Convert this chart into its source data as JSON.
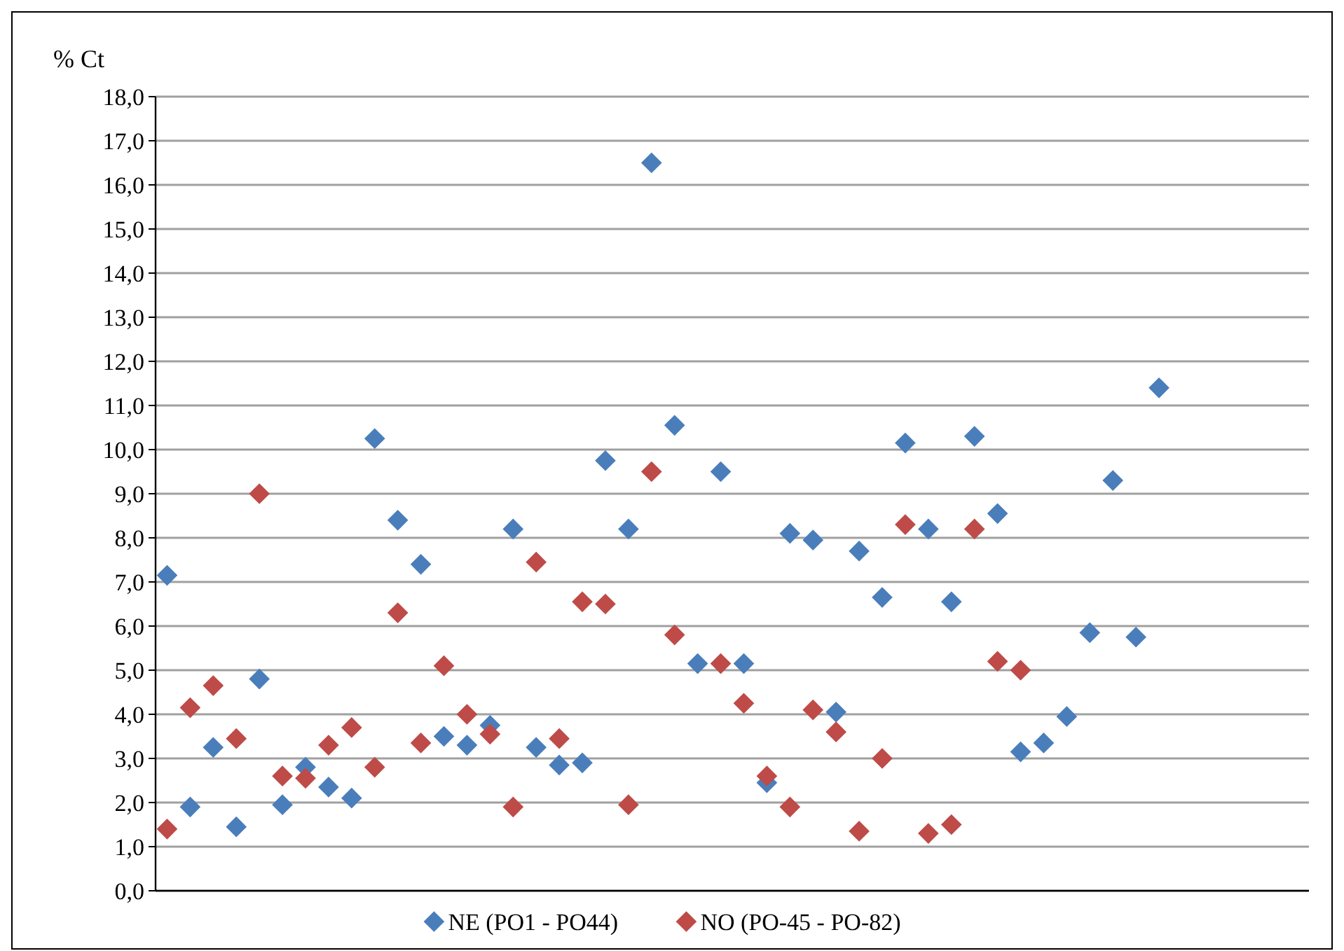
{
  "chart_data": {
    "type": "scatter",
    "ylabel": "% Ct",
    "categories": [
      null,
      null,
      null,
      null,
      null,
      null,
      null,
      null,
      null,
      null,
      null,
      null,
      null,
      null,
      null,
      null,
      null,
      null,
      null,
      null,
      null,
      null,
      null,
      null,
      null,
      null,
      null,
      null,
      null,
      null,
      null,
      null,
      null,
      null,
      null,
      null,
      null,
      null,
      null,
      null,
      null,
      null,
      null,
      null,
      null,
      null,
      null,
      null,
      null,
      null
    ],
    "ylim": [
      0,
      18
    ],
    "yticks": [
      {
        "value": 0,
        "label": "0,0"
      },
      {
        "value": 1,
        "label": "1,0"
      },
      {
        "value": 2,
        "label": "2,0"
      },
      {
        "value": 3,
        "label": "3,0"
      },
      {
        "value": 4,
        "label": "4,0"
      },
      {
        "value": 5,
        "label": "5,0"
      },
      {
        "value": 6,
        "label": "6,0"
      },
      {
        "value": 7,
        "label": "7,0"
      },
      {
        "value": 8,
        "label": "8,0"
      },
      {
        "value": 9,
        "label": "9,0"
      },
      {
        "value": 10,
        "label": "10,0"
      },
      {
        "value": 11,
        "label": "11,0"
      },
      {
        "value": 12,
        "label": "12,0"
      },
      {
        "value": 13,
        "label": "13,0"
      },
      {
        "value": 14,
        "label": "14,0"
      },
      {
        "value": 15,
        "label": "15,0"
      },
      {
        "value": 16,
        "label": "16,0"
      },
      {
        "value": 17,
        "label": "17,0"
      },
      {
        "value": 18,
        "label": "18,0"
      }
    ],
    "grid": "y",
    "legend": "bottom",
    "marker": "diamond",
    "series": [
      {
        "name": "NE (PO1 - PO44)",
        "color": "#4a7ebb",
        "values": [
          7.15,
          1.9,
          3.25,
          1.45,
          4.8,
          1.95,
          2.8,
          2.35,
          2.1,
          10.25,
          8.4,
          7.4,
          3.5,
          3.3,
          3.75,
          8.2,
          3.25,
          2.85,
          2.9,
          9.75,
          8.2,
          16.5,
          10.55,
          5.15,
          9.5,
          5.15,
          2.45,
          8.1,
          7.95,
          4.05,
          7.7,
          6.65,
          10.15,
          8.2,
          6.55,
          10.3,
          8.55,
          3.15,
          3.35,
          3.95,
          5.85,
          9.3,
          5.75,
          11.4,
          null,
          null,
          null,
          null,
          null,
          null
        ]
      },
      {
        "name": "NO (PO-45 - PO-82)",
        "color": "#be4b48",
        "values": [
          1.4,
          4.15,
          4.65,
          3.45,
          9.0,
          2.6,
          2.55,
          3.3,
          3.7,
          2.8,
          6.3,
          3.35,
          5.1,
          4.0,
          3.55,
          1.9,
          7.45,
          3.45,
          6.55,
          6.5,
          1.95,
          9.5,
          5.8,
          null,
          5.15,
          4.25,
          2.6,
          1.9,
          4.1,
          3.6,
          1.35,
          3.0,
          8.3,
          1.3,
          1.5,
          8.2,
          5.2,
          5.0,
          null,
          null,
          null,
          null,
          null,
          null,
          null,
          null,
          null,
          null,
          null,
          null
        ]
      }
    ]
  }
}
